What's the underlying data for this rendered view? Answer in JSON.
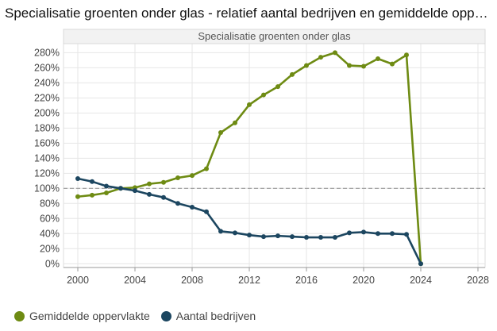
{
  "title": "Specialisatie groenten onder glas - relatief aantal bedrijven en gemiddelde opperv…",
  "colors": {
    "green": "#6e8b13",
    "navy": "#1c4660",
    "grid": "#e6e6e6",
    "reference": "#9a9a9a"
  },
  "chart_data": {
    "type": "line",
    "title": "Specialisatie groenten onder glas",
    "x_ticks": [
      "2000",
      "2004",
      "2008",
      "2012",
      "2016",
      "2020",
      "2024",
      "2028"
    ],
    "y_ticks": [
      "0%",
      "20%",
      "40%",
      "60%",
      "80%",
      "100%",
      "120%",
      "140%",
      "160%",
      "180%",
      "200%",
      "220%",
      "240%",
      "260%",
      "280%"
    ],
    "xlim": [
      1999,
      2028.5
    ],
    "ylim": [
      -5,
      292
    ],
    "reference_line": 100,
    "series": [
      {
        "name": "Gemiddelde oppervlakte",
        "color": "#6e8b13",
        "x": [
          2000,
          2001,
          2002,
          2003,
          2004,
          2005,
          2006,
          2007,
          2008,
          2009,
          2010,
          2011,
          2012,
          2013,
          2014,
          2015,
          2016,
          2017,
          2018,
          2019,
          2020,
          2021,
          2022,
          2023,
          2024
        ],
        "values": [
          89,
          91,
          94,
          100,
          101,
          106,
          108,
          114,
          117,
          126,
          174,
          187,
          211,
          224,
          235,
          251,
          263,
          274,
          280,
          263,
          262,
          272,
          265,
          277,
          0
        ]
      },
      {
        "name": "Aantal bedrijven",
        "color": "#1c4660",
        "x": [
          2000,
          2001,
          2002,
          2003,
          2004,
          2005,
          2006,
          2007,
          2008,
          2009,
          2010,
          2011,
          2012,
          2013,
          2014,
          2015,
          2016,
          2017,
          2018,
          2019,
          2020,
          2021,
          2022,
          2023,
          2024
        ],
        "values": [
          113,
          109,
          103,
          100,
          97,
          92,
          88,
          80,
          75,
          69,
          43,
          41,
          38,
          36,
          37,
          36,
          35,
          35,
          35,
          41,
          42,
          40,
          40,
          39,
          0
        ]
      }
    ]
  },
  "legend": [
    {
      "label": "Gemiddelde oppervlakte",
      "color": "#6e8b13"
    },
    {
      "label": "Aantal bedrijven",
      "color": "#1c4660"
    }
  ]
}
